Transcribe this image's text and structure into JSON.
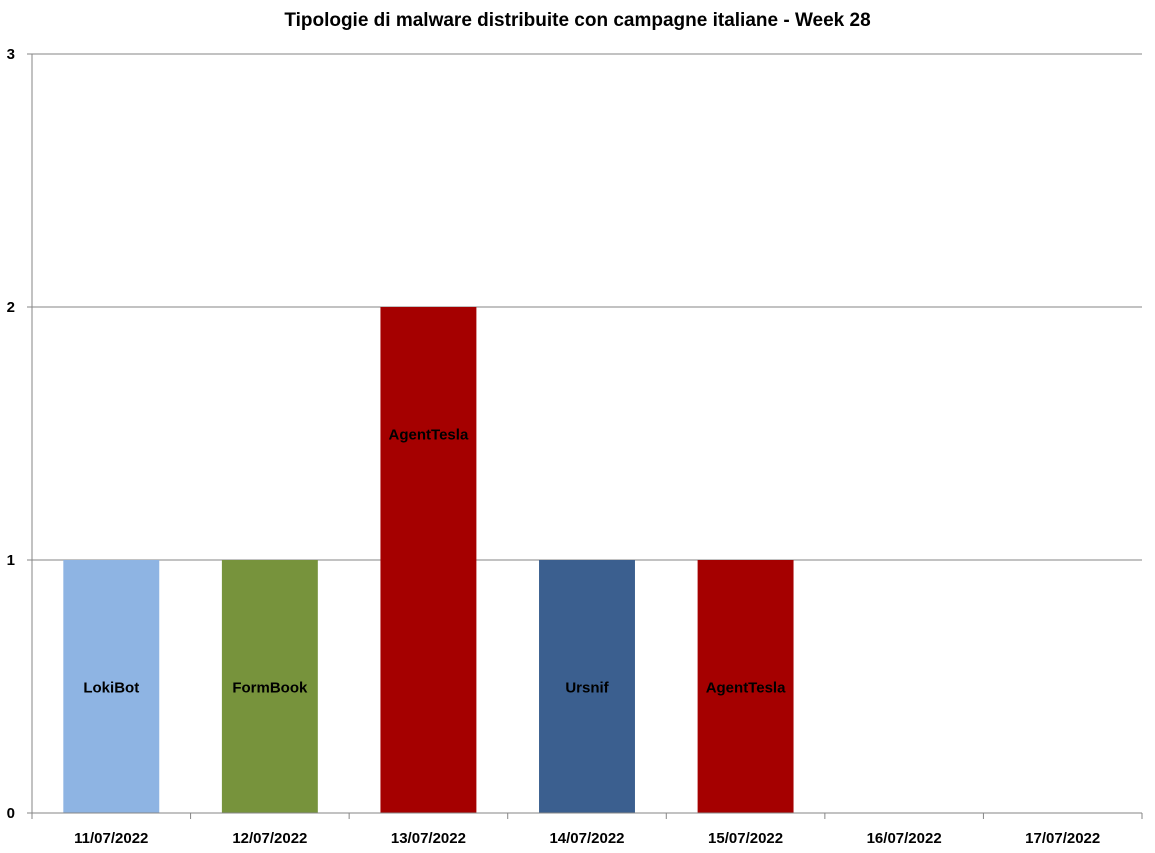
{
  "chart_data": {
    "type": "bar",
    "title": "Tipologie  di malware distribuite con campagne italiane - Week 28",
    "xlabel": "",
    "ylabel": "",
    "ylim": [
      0,
      3
    ],
    "yticks": [
      "0",
      "1",
      "2",
      "3"
    ],
    "grid": true,
    "categories": [
      "11/07/2022",
      "12/07/2022",
      "13/07/2022",
      "14/07/2022",
      "15/07/2022",
      "16/07/2022",
      "17/07/2022"
    ],
    "bars": [
      {
        "category": "11/07/2022",
        "value": 1,
        "label": "LokiBot",
        "color": "#8EB4E3"
      },
      {
        "category": "12/07/2022",
        "value": 1,
        "label": "FormBook",
        "color": "#77933C"
      },
      {
        "category": "13/07/2022",
        "value": 2,
        "label": "AgentTesla",
        "color": "#A50000"
      },
      {
        "category": "14/07/2022",
        "value": 1,
        "label": "Ursnif",
        "color": "#3B5F8F"
      },
      {
        "category": "15/07/2022",
        "value": 1,
        "label": "AgentTesla",
        "color": "#A50000"
      },
      {
        "category": "16/07/2022",
        "value": 0,
        "label": "",
        "color": ""
      },
      {
        "category": "17/07/2022",
        "value": 0,
        "label": "",
        "color": ""
      }
    ]
  }
}
